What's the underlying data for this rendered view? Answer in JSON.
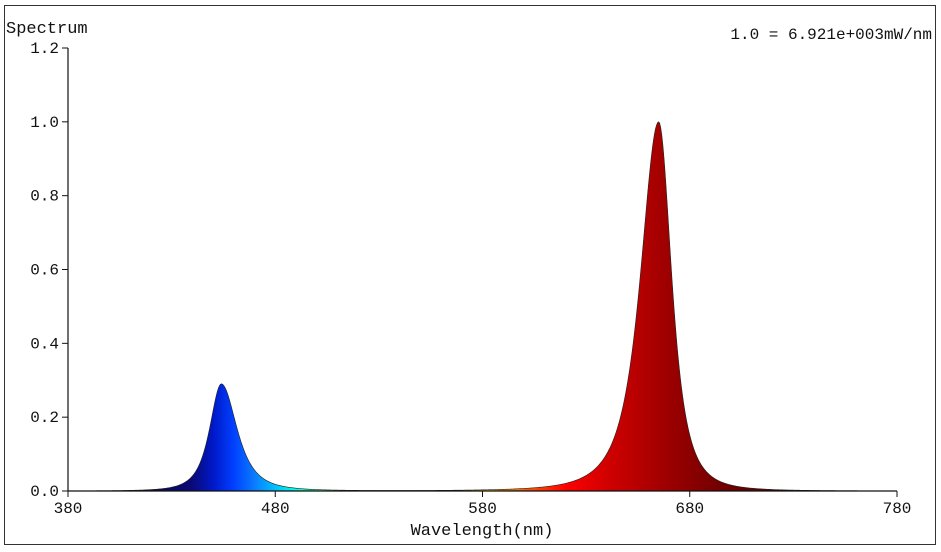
{
  "chart_data": {
    "type": "area",
    "title": "Spectrum",
    "xlabel": "Wavelength(nm)",
    "ylabel": "",
    "annotation": "1.0 = 6.921e+003mW/nm",
    "xlim": [
      380,
      780
    ],
    "ylim": [
      0,
      1.2
    ],
    "x_ticks": [
      "380",
      "480",
      "580",
      "680",
      "780"
    ],
    "y_ticks": [
      "0.0",
      "0.2",
      "0.4",
      "0.6",
      "0.8",
      "1.0",
      "1.2"
    ],
    "grid": false,
    "peaks": [
      {
        "name": "",
        "center_nm": 454,
        "peak_value": 0.29,
        "width_left_nm": 9,
        "width_right_nm": 12
      },
      {
        "name": "",
        "center_nm": 665,
        "peak_value": 1.0,
        "width_left_nm": 14,
        "width_right_nm": 10
      }
    ],
    "x": [
      380,
      400,
      420,
      430,
      440,
      445,
      450,
      454,
      458,
      462,
      466,
      470,
      480,
      490,
      500,
      520,
      540,
      560,
      580,
      600,
      610,
      620,
      630,
      640,
      645,
      650,
      655,
      660,
      665,
      670,
      675,
      680,
      690,
      700,
      720,
      750,
      780
    ],
    "values": [
      0.005,
      0.002,
      0.01,
      0.03,
      0.08,
      0.14,
      0.22,
      0.29,
      0.24,
      0.17,
      0.12,
      0.08,
      0.035,
      0.015,
      0.007,
      0.002,
      0.001,
      0.001,
      0.002,
      0.008,
      0.02,
      0.05,
      0.11,
      0.24,
      0.35,
      0.5,
      0.7,
      0.9,
      1.0,
      0.88,
      0.6,
      0.33,
      0.11,
      0.04,
      0.008,
      0.002,
      0.0
    ]
  }
}
